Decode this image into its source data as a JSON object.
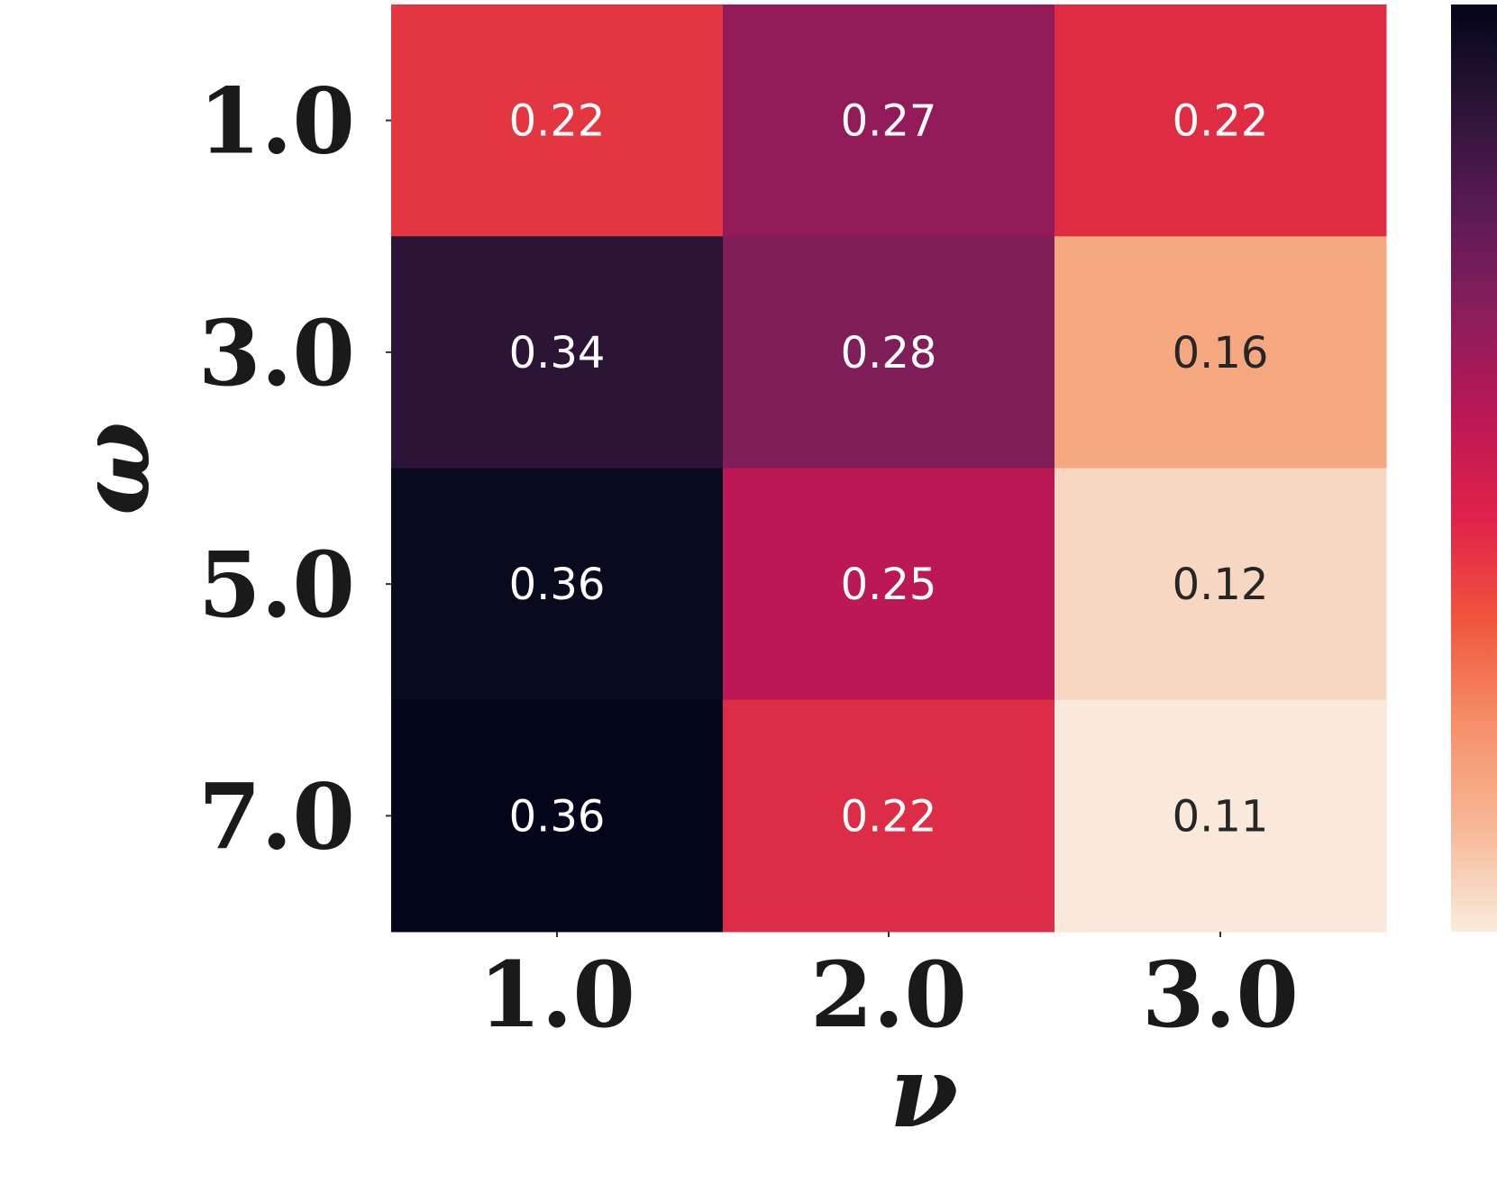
{
  "chart_data": {
    "type": "heatmap",
    "title": "",
    "xlabel": "ν",
    "ylabel": "ω",
    "x_categories": [
      "1.0",
      "2.0",
      "3.0"
    ],
    "y_categories": [
      "1.0",
      "3.0",
      "5.0",
      "7.0"
    ],
    "values": [
      [
        0.22,
        0.27,
        0.22
      ],
      [
        0.34,
        0.28,
        0.16
      ],
      [
        0.36,
        0.25,
        0.12
      ],
      [
        0.36,
        0.22,
        0.11
      ]
    ],
    "cell_labels": [
      [
        "0.22",
        "0.27",
        "0.22"
      ],
      [
        "0.34",
        "0.28",
        "0.16"
      ],
      [
        "0.36",
        "0.25",
        "0.12"
      ],
      [
        "0.36",
        "0.22",
        "0.11"
      ]
    ],
    "cell_colors": [
      [
        "#e33641",
        "#931a58",
        "#df2c43"
      ],
      [
        "#2c1437",
        "#801e59",
        "#f5a77f"
      ],
      [
        "#080a1d",
        "#bb1855",
        "#f7d7c1"
      ],
      [
        "#03051a",
        "#dd2c45",
        "#fae8da"
      ]
    ],
    "label_colors": [
      [
        "#ffffff",
        "#ffffff",
        "#ffffff"
      ],
      [
        "#ffffff",
        "#ffffff",
        "#262626"
      ],
      [
        "#ffffff",
        "#ffffff",
        "#262626"
      ],
      [
        "#ffffff",
        "#ffffff",
        "#262626"
      ]
    ],
    "colormap": [
      "#03051a",
      "#2c1437",
      "#5a1a54",
      "#8a1d5a",
      "#bb1855",
      "#e0224a",
      "#f0573d",
      "#f6906b",
      "#f7b896",
      "#faebdd"
    ],
    "colorbar_range": [
      0.11,
      0.36
    ],
    "colorbar_ticks": "not visible",
    "legend": "colorbar right"
  }
}
